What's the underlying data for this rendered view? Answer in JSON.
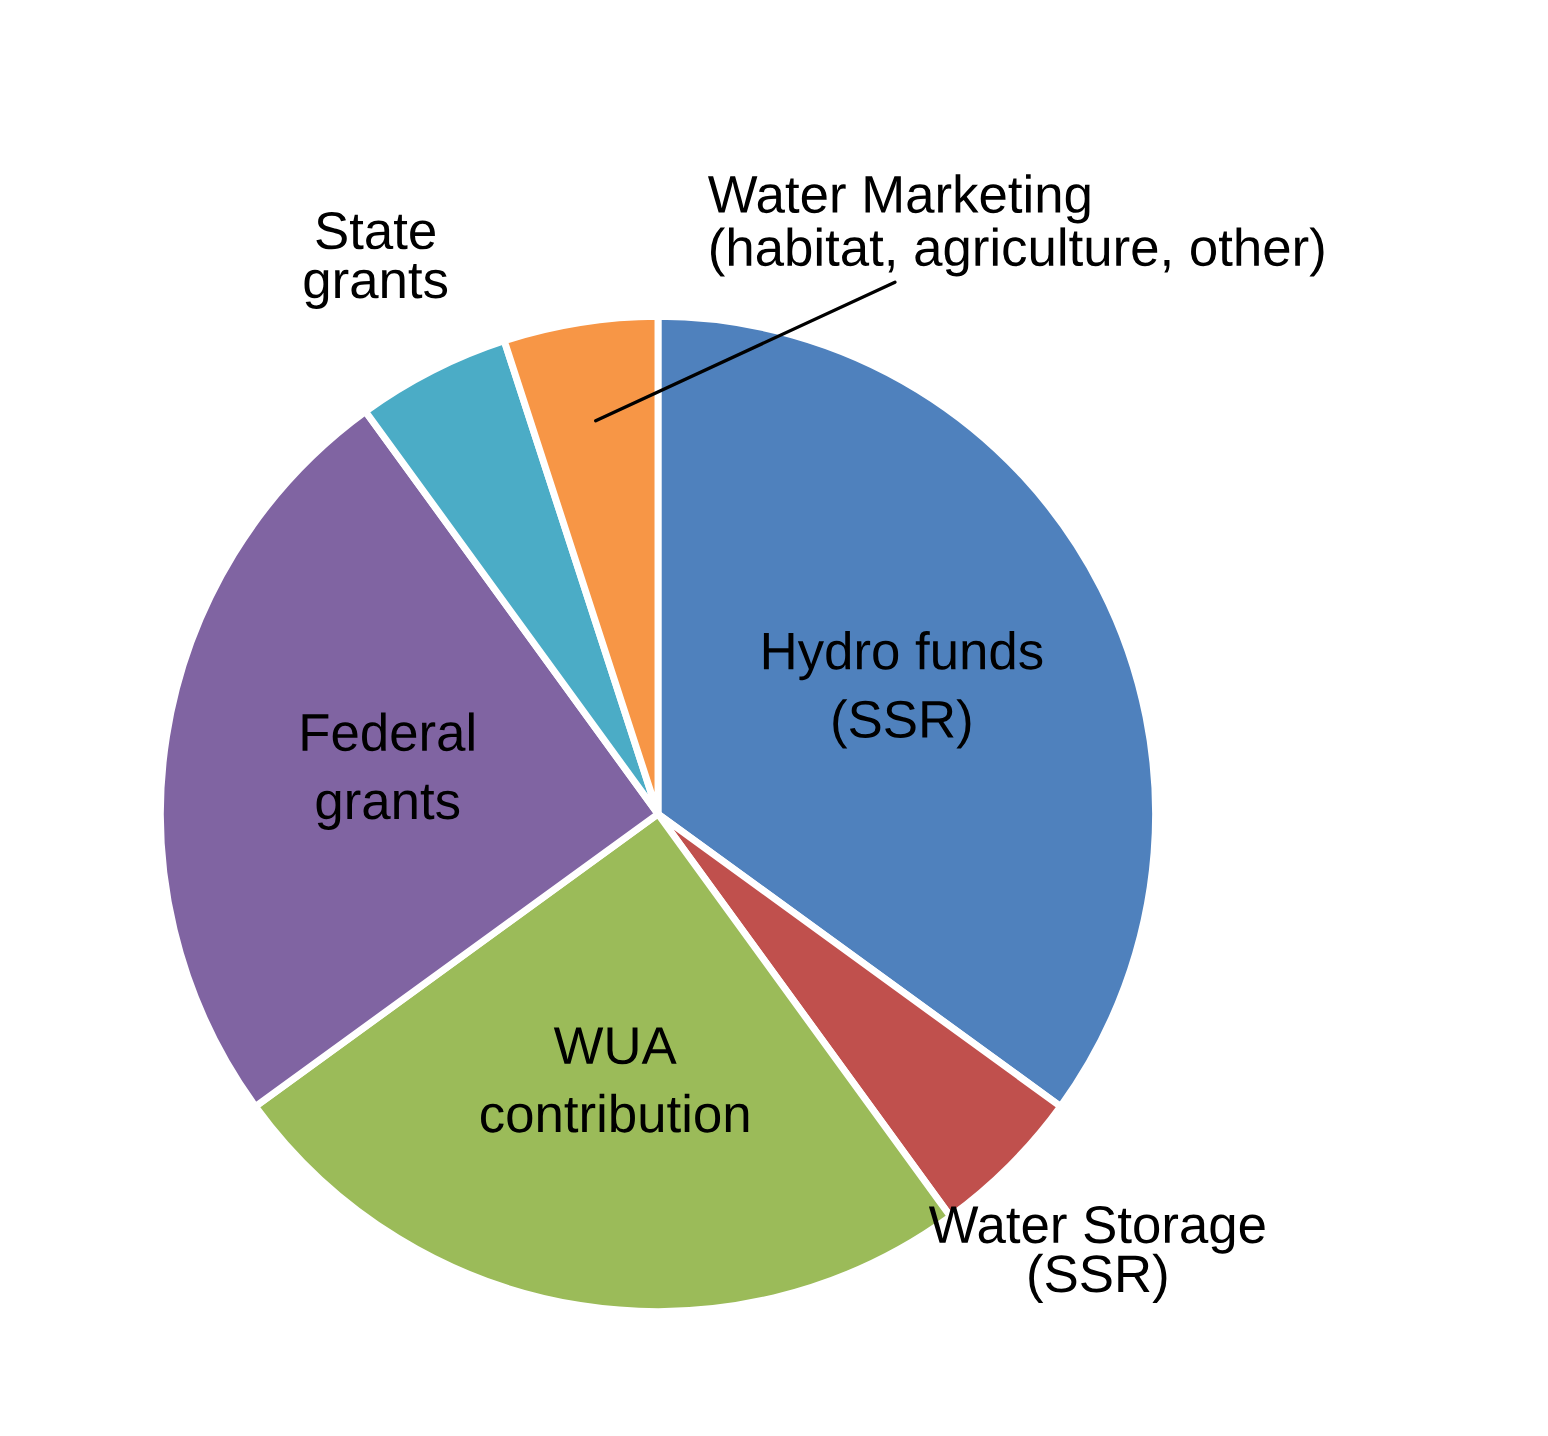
{
  "chart_data": {
    "type": "pie",
    "categories": [
      "Hydro funds\n(SSR)",
      "Water Storage\n(SSR)",
      "WUA\ncontribution",
      "Federal\ngrants",
      "State\ngrants",
      "Water Marketing\n(habitat, agriculture, other)"
    ],
    "values": [
      35,
      5,
      25,
      25,
      5,
      5
    ],
    "colors": [
      "#4f81bd",
      "#c0504d",
      "#9bbb59",
      "#8064a2",
      "#4bacc6",
      "#f79646"
    ]
  }
}
